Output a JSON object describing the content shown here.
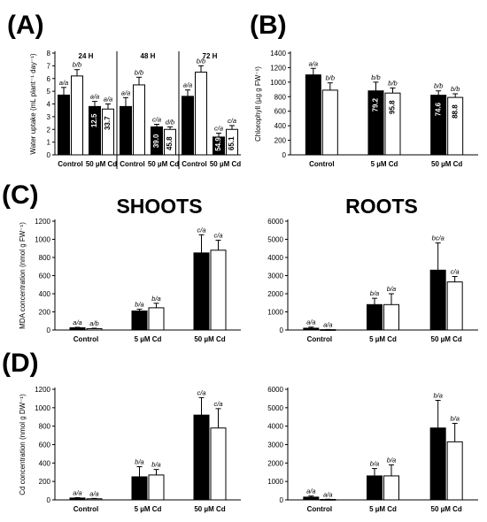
{
  "panels": {
    "A": {
      "label": "(A)"
    },
    "B": {
      "label": "(B)"
    },
    "C": {
      "label": "(C)",
      "shoots_title": "SHOOTS",
      "roots_title": "ROOTS"
    },
    "D": {
      "label": "(D)"
    }
  },
  "chart_data": [
    {
      "id": "A",
      "type": "bar",
      "ylabel": "Water uptake (mL plant⁻¹ day⁻¹)",
      "ylim": [
        0,
        8
      ],
      "yticks": [
        0,
        1,
        2,
        3,
        4,
        5,
        6,
        7,
        8
      ],
      "grid": false,
      "groups": [
        "24 H",
        "48 H",
        "72 H"
      ],
      "categories": [
        "Control",
        "50 µM Cd",
        "Control",
        "50 µM Cd",
        "Control",
        "50 µM Cd"
      ],
      "series": [
        {
          "color": "#000000",
          "values": [
            4.7,
            3.8,
            3.8,
            2.2,
            4.6,
            1.4
          ],
          "errors": [
            0.6,
            0.4,
            0.7,
            0.2,
            0.5,
            0.3
          ],
          "sig": [
            "a/a",
            "a/a",
            "a/a",
            "c/a",
            "a/a",
            "c/a"
          ]
        },
        {
          "color": "#ffffff",
          "values": [
            6.2,
            3.6,
            5.5,
            2.0,
            6.5,
            2.0
          ],
          "errors": [
            0.5,
            0.4,
            0.6,
            0.2,
            0.5,
            0.3
          ],
          "sig": [
            "b/b",
            "a/a",
            "b/b",
            "d/b",
            "b/b",
            "c/a"
          ]
        }
      ],
      "bar_labels": [
        {
          "series": 0,
          "index": 1,
          "text": "12.5"
        },
        {
          "series": 1,
          "index": 1,
          "text": "33.7"
        },
        {
          "series": 0,
          "index": 3,
          "text": "39.0"
        },
        {
          "series": 1,
          "index": 3,
          "text": "45.8"
        },
        {
          "series": 0,
          "index": 5,
          "text": "54.9"
        },
        {
          "series": 1,
          "index": 5,
          "text": "65.1"
        }
      ]
    },
    {
      "id": "B",
      "type": "bar",
      "ylabel": "Chlorophyll (µg g FW⁻¹)",
      "ylim": [
        0,
        1400
      ],
      "yticks": [
        0,
        200,
        400,
        600,
        800,
        1000,
        1200,
        1400
      ],
      "grid": false,
      "categories": [
        "Control",
        "5 µM Cd",
        "50 µM Cd"
      ],
      "series": [
        {
          "color": "#000000",
          "values": [
            1100,
            880,
            820
          ],
          "errors": [
            90,
            120,
            60
          ],
          "sig": [
            "a/a",
            "b/b",
            "b/b"
          ]
        },
        {
          "color": "#ffffff",
          "values": [
            890,
            850,
            790
          ],
          "errors": [
            100,
            70,
            50
          ],
          "sig": [
            "b/b",
            "b/b",
            "b/b"
          ]
        }
      ],
      "bar_labels": [
        {
          "series": 0,
          "index": 1,
          "text": "79.2"
        },
        {
          "series": 1,
          "index": 1,
          "text": "95.8"
        },
        {
          "series": 0,
          "index": 2,
          "text": "74.6"
        },
        {
          "series": 1,
          "index": 2,
          "text": "88.8"
        }
      ]
    },
    {
      "id": "C-shoots",
      "type": "bar",
      "ylabel": "MDA concentration (nmol g FW⁻¹)",
      "ylim": [
        0,
        1200
      ],
      "yticks": [
        0,
        200,
        400,
        600,
        800,
        1000,
        1200
      ],
      "grid": false,
      "categories": [
        "Control",
        "5 µM Cd",
        "50 µM Cd"
      ],
      "series": [
        {
          "color": "#000000",
          "values": [
            25,
            210,
            850
          ],
          "errors": [
            5,
            20,
            200
          ],
          "sig": [
            "a/a",
            "b/a",
            "c/a"
          ]
        },
        {
          "color": "#ffffff",
          "values": [
            15,
            245,
            880
          ],
          "errors": [
            5,
            50,
            110
          ],
          "sig": [
            "a/b",
            "b/a",
            "c/a"
          ]
        }
      ]
    },
    {
      "id": "C-roots",
      "type": "bar",
      "ylim": [
        0,
        6000
      ],
      "yticks": [
        0,
        1000,
        2000,
        3000,
        4000,
        5000,
        6000
      ],
      "grid": false,
      "categories": [
        "Control",
        "5 µM Cd",
        "50 µM Cd"
      ],
      "series": [
        {
          "color": "#000000",
          "values": [
            100,
            1400,
            3300
          ],
          "errors": [
            60,
            350,
            1500
          ],
          "sig": [
            "a/a",
            "b/a",
            "bc/a"
          ]
        },
        {
          "color": "#ffffff",
          "values": [
            20,
            1400,
            2650
          ],
          "errors": [
            10,
            600,
            300
          ],
          "sig": [
            "a/a",
            "b/a",
            "c/a"
          ]
        }
      ]
    },
    {
      "id": "D-shoots",
      "type": "bar",
      "ylabel": "Cd concentration (nmol g DW⁻¹)",
      "ylim": [
        0,
        1200
      ],
      "yticks": [
        0,
        200,
        400,
        600,
        800,
        1000,
        1200
      ],
      "grid": false,
      "categories": [
        "Control",
        "5 µM Cd",
        "50 µM Cd"
      ],
      "series": [
        {
          "color": "#000000",
          "values": [
            20,
            250,
            920
          ],
          "errors": [
            5,
            110,
            190
          ],
          "sig": [
            "a/a",
            "b/a",
            "c/a"
          ]
        },
        {
          "color": "#ffffff",
          "values": [
            12,
            270,
            780
          ],
          "errors": [
            4,
            60,
            210
          ],
          "sig": [
            "a/a",
            "b/a",
            "c/a"
          ]
        }
      ]
    },
    {
      "id": "D-roots",
      "type": "bar",
      "ylim": [
        0,
        6000
      ],
      "yticks": [
        0,
        1000,
        2000,
        3000,
        4000,
        5000,
        6000
      ],
      "grid": false,
      "categories": [
        "Control",
        "5 µM Cd",
        "50 µM Cd"
      ],
      "series": [
        {
          "color": "#000000",
          "values": [
            150,
            1300,
            3900
          ],
          "errors": [
            60,
            400,
            1500
          ],
          "sig": [
            "a/a",
            "b/a",
            "b/a"
          ]
        },
        {
          "color": "#ffffff",
          "values": [
            25,
            1300,
            3150
          ],
          "errors": [
            10,
            600,
            1000
          ],
          "sig": [
            "a/a",
            "b/a",
            "b/a"
          ]
        }
      ]
    }
  ]
}
